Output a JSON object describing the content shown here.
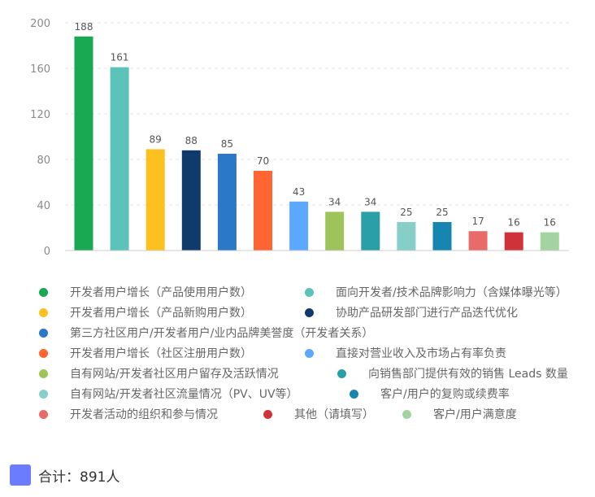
{
  "chart_data": {
    "type": "bar",
    "categories": [
      "开发者用户增长（产品使用用户数）",
      "面向开发者/技术品牌影响力（含媒体曝光等）",
      "开发者用户增长（产品新购用户数）",
      "协助产品研发部门进行产品迭代优化",
      "第三方社区用户/开发者用户/业内品牌美誉度（开发者关系）",
      "开发者用户增长（社区注册用户数）",
      "直接对营业收入及市场占有率负责",
      "自有网站/开发者社区用户留存及活跃情况",
      "向销售部门提供有效的销售 Leads 数量",
      "自有网站/开发者社区流量情况（PV、UV等）",
      "客户/用户的复购或续费率",
      "开发者活动的组织和参与情况",
      "其他（请填写）",
      "客户/用户满意度"
    ],
    "values": [
      188,
      161,
      89,
      88,
      85,
      70,
      43,
      34,
      34,
      25,
      25,
      17,
      16,
      16
    ],
    "colors": [
      "#1aa953",
      "#5bc3b7",
      "#fcc11f",
      "#113a6c",
      "#2b77c8",
      "#ff6433",
      "#5ca8ff",
      "#9ec35a",
      "#2b9fa8",
      "#86cfc9",
      "#1686b0",
      "#e86b6a",
      "#d0323a",
      "#a3d49f"
    ],
    "ylim": [
      0,
      200
    ],
    "yticks": [
      0,
      40,
      80,
      120,
      160,
      200
    ],
    "grid": true,
    "legend_position": "bottom",
    "total_label": "合计：891人",
    "total_color": "#6b7cff"
  }
}
